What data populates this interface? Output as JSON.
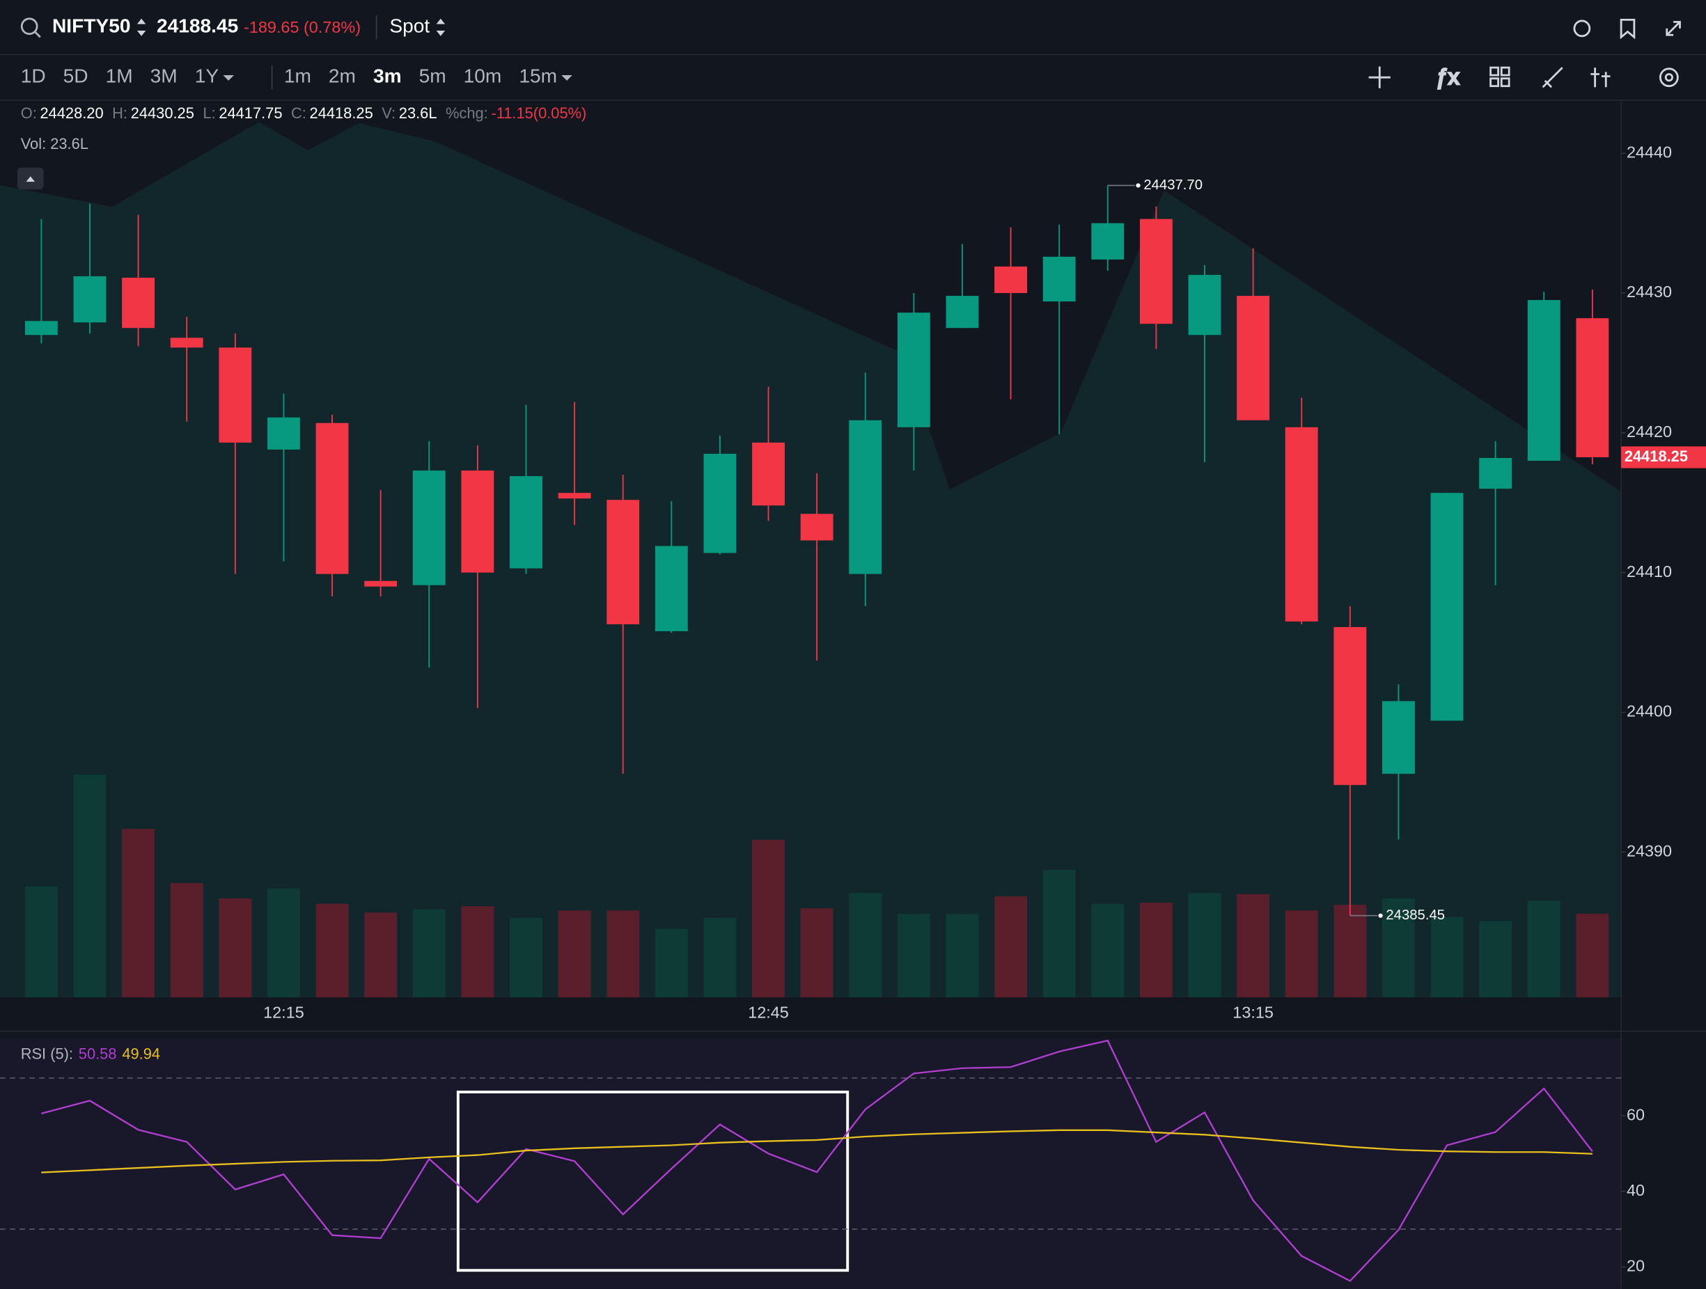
{
  "search_bar": {
    "symbol": "NIFTY50",
    "price": "24188.45",
    "change": "-189.65 (0.78%)",
    "mode": "Spot"
  },
  "timeframes": {
    "ranges": [
      {
        "label": "1D"
      },
      {
        "label": "5D"
      },
      {
        "label": "1M"
      },
      {
        "label": "3M"
      },
      {
        "label": "1Y"
      }
    ],
    "intervals": [
      {
        "label": "1m"
      },
      {
        "label": "2m"
      },
      {
        "label": "3m",
        "active": true
      },
      {
        "label": "5m"
      },
      {
        "label": "10m"
      },
      {
        "label": "15m"
      }
    ]
  },
  "ohlc_header": {
    "items": [
      {
        "key": "O:",
        "value": "24428.20"
      },
      {
        "key": "H:",
        "value": "24430.25"
      },
      {
        "key": "L:",
        "value": "24417.75"
      },
      {
        "key": "C:",
        "value": "24418.25"
      },
      {
        "key": "V:",
        "value": "23.6L"
      },
      {
        "key": "%chg:",
        "value": "-11.15(0.05%)",
        "color": "#f23645"
      }
    ],
    "volume": "Vol: 23.6L"
  },
  "chart_data": [
    {
      "type": "candlestick",
      "categories": [
        null,
        null,
        null,
        null,
        null,
        "12:15",
        null,
        null,
        null,
        null,
        null,
        null,
        null,
        null,
        null,
        "12:45",
        null,
        null,
        null,
        null,
        null,
        null,
        null,
        null,
        null,
        "13:15",
        null,
        null,
        null,
        null,
        null,
        null,
        null
      ],
      "open": [
        24427.0,
        24427.9,
        24431.1,
        24426.8,
        24426.1,
        24418.8,
        24420.7,
        24409.4,
        24409.1,
        24417.3,
        24410.3,
        24415.7,
        24415.2,
        24405.8,
        24411.4,
        24419.3,
        24414.2,
        24409.9,
        24420.4,
        24427.5,
        24431.9,
        24429.4,
        24432.4,
        24435.3,
        24427.0,
        24429.8,
        24420.4,
        24406.1,
        24395.6,
        24399.4,
        24416.0,
        24418.0,
        24428.2
      ],
      "high": [
        24435.3,
        24436.4,
        24435.6,
        24428.3,
        24427.1,
        24422.8,
        24421.3,
        24415.9,
        24419.4,
        24419.1,
        24422.0,
        24422.2,
        24417.0,
        24415.1,
        24419.8,
        24423.3,
        24417.1,
        24424.3,
        24430.0,
        24433.5,
        24434.7,
        24434.9,
        24437.7,
        24436.2,
        24432.0,
        24433.2,
        24422.5,
        24407.6,
        24402.0,
        24415.7,
        24419.4,
        24430.1,
        24430.25
      ],
      "low": [
        24426.4,
        24427.1,
        24426.2,
        24420.8,
        24409.9,
        24410.8,
        24408.3,
        24408.3,
        24403.2,
        24400.3,
        24409.9,
        24413.4,
        24395.6,
        24405.7,
        24411.3,
        24413.7,
        24403.7,
        24407.6,
        24417.3,
        24427.5,
        24422.4,
        24419.9,
        24431.6,
        24426.0,
        24417.9,
        24420.9,
        24406.3,
        24385.45,
        24390.9,
        24399.4,
        24409.1,
        24418.0,
        24417.75
      ],
      "close": [
        24428.0,
        24431.2,
        24427.5,
        24426.1,
        24419.3,
        24421.1,
        24409.9,
        24409.0,
        24417.3,
        24410.0,
        24416.9,
        24415.3,
        24406.3,
        24411.9,
        24418.5,
        24414.8,
        24412.3,
        24420.9,
        24428.6,
        24429.8,
        24430.0,
        24432.6,
        24435.0,
        24427.8,
        24431.3,
        24420.9,
        24406.5,
        24394.8,
        24400.8,
        24415.7,
        24418.2,
        24429.5,
        24418.25
      ],
      "volume": [
        31.3,
        62.8,
        47.5,
        32.2,
        27.9,
        30.7,
        26.4,
        23.9,
        24.8,
        25.7,
        22.4,
        24.5,
        24.5,
        19.3,
        22.4,
        44.4,
        25.1,
        29.4,
        23.6,
        23.6,
        28.5,
        35.9,
        26.4,
        26.7,
        29.4,
        29.1,
        24.5,
        26.1,
        27.9,
        22.7,
        21.5,
        27.3,
        23.6
      ],
      "up_color": "#089981",
      "down_color": "#f23645",
      "up_volume_color": "#0f3b37",
      "down_volume_color": "#5a1f2b",
      "ylim": [
        24379.6,
        24443.8
      ],
      "yticks": [
        24390,
        24400,
        24410,
        24420,
        24430,
        24440
      ],
      "vlim": [
        0,
        80
      ],
      "max_label": "24437.70",
      "min_label": "24385.45"
    },
    {
      "type": "line",
      "title": "RSI (5):",
      "series": [
        {
          "color": "#b03fd0",
          "values": [
            60.6,
            64.0,
            56.3,
            53.1,
            40.5,
            44.5,
            28.4,
            27.6,
            48.6,
            37.1,
            51.2,
            48.0,
            33.9,
            46.0,
            57.7,
            50.0,
            45.1,
            61.7,
            71.2,
            72.6,
            72.9,
            77.0,
            79.9,
            53.1,
            60.9,
            37.6,
            22.9,
            16.3,
            29.8,
            52.2,
            55.7,
            67.2,
            50.58
          ]
        },
        {
          "color": "#e8c01e",
          "values": [
            45.0,
            45.6,
            46.2,
            46.8,
            47.3,
            47.8,
            48.1,
            48.2,
            49.0,
            49.6,
            50.8,
            51.4,
            51.8,
            52.2,
            52.9,
            53.3,
            53.6,
            54.5,
            55.1,
            55.5,
            55.9,
            56.2,
            56.2,
            55.6,
            55.0,
            54.0,
            52.9,
            51.8,
            51.0,
            50.6,
            50.4,
            50.4,
            49.94
          ]
        }
      ],
      "ylim": [
        14.2,
        80.4
      ],
      "yticks": [
        20,
        40,
        60
      ],
      "levels": [
        30,
        70
      ]
    }
  ]
}
